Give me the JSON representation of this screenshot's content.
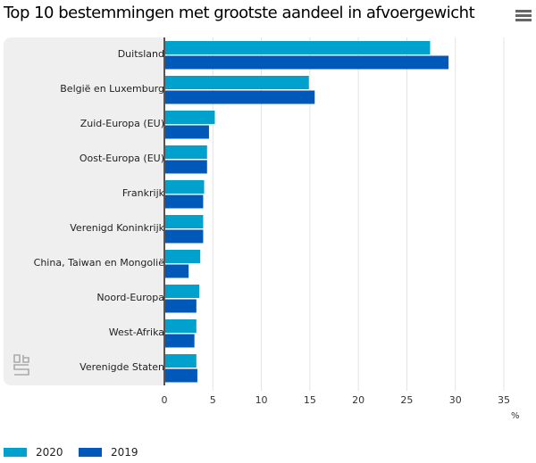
{
  "header": {
    "title": "Top 10 bestemmingen met grootste aandeel in afvoergewicht",
    "menu_icon": "hamburger-menu-icon"
  },
  "logo": {
    "icon": "cbs-logo-icon"
  },
  "legend": [
    {
      "label": "2020",
      "color": "#00a1cd"
    },
    {
      "label": "2019",
      "color": "#0058b8"
    }
  ],
  "chart_data": {
    "type": "bar",
    "orientation": "horizontal",
    "title": "Top 10 bestemmingen met grootste aandeel in afvoergewicht",
    "xlabel": "%",
    "ylabel": "",
    "xlim": [
      0,
      35
    ],
    "xticks": [
      "0",
      "5",
      "10",
      "15",
      "20",
      "25",
      "30",
      "35"
    ],
    "grid": true,
    "legend_position": "bottom-left",
    "categories": [
      "Duitsland",
      "België en Luxemburg",
      "Zuid-Europa (EU)",
      "Oost-Europa (EU)",
      "Frankrijk",
      "Verenigd Koninkrijk",
      "China, Taiwan en Mongolië",
      "Noord-Europa",
      "West-Afrika",
      "Verenigde Staten"
    ],
    "series": [
      {
        "name": "2020",
        "color": "#00a1cd",
        "values": [
          27.4,
          14.9,
          5.2,
          4.4,
          4.1,
          4.0,
          3.7,
          3.6,
          3.3,
          3.3
        ]
      },
      {
        "name": "2019",
        "color": "#0058b8",
        "values": [
          29.3,
          15.5,
          4.6,
          4.4,
          4.0,
          4.0,
          2.5,
          3.3,
          3.1,
          3.4
        ]
      }
    ]
  }
}
